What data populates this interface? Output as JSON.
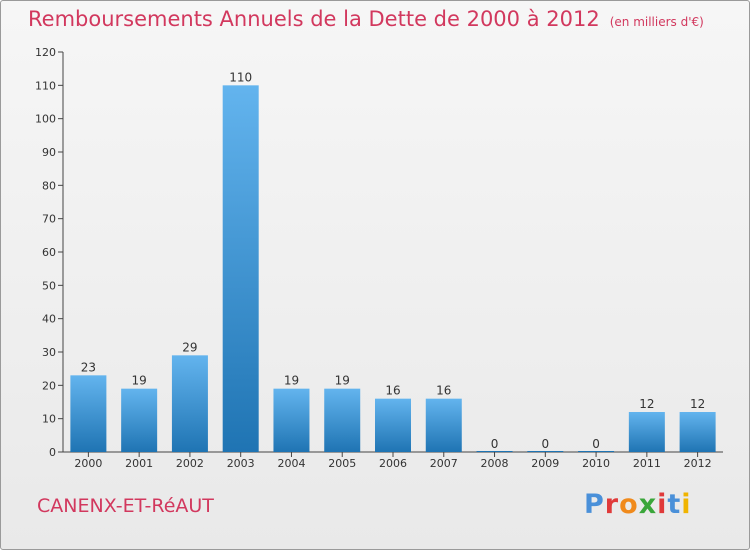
{
  "title": "Remboursements Annuels de la Dette de 2000 à 2012",
  "subtitle": "(en milliers d'€)",
  "town": "CANENX-ET-RéAUT",
  "logo": {
    "letters": [
      "P",
      "r",
      "o",
      "x",
      "i",
      "t",
      "i"
    ],
    "colors": [
      "#4a90d9",
      "#e03a3a",
      "#f08a1c",
      "#3aa63a",
      "#e03a3a",
      "#4a90d9",
      "#f0b400"
    ]
  },
  "colors": {
    "title": "#d2385e",
    "bar_top": "#63b4ee",
    "bar_bottom": "#1f74b3",
    "axis": "#444444"
  },
  "chart_data": {
    "type": "bar",
    "categories": [
      "2000",
      "2001",
      "2002",
      "2003",
      "2004",
      "2005",
      "2006",
      "2007",
      "2008",
      "2009",
      "2010",
      "2011",
      "2012"
    ],
    "values": [
      23,
      19,
      29,
      110,
      19,
      19,
      16,
      16,
      0,
      0,
      0,
      12,
      12
    ],
    "data_labels": [
      "23",
      "19",
      "29",
      "110",
      "19",
      "19",
      "16",
      "16",
      "0",
      "0",
      "0",
      "12",
      "12"
    ],
    "title": "Remboursements Annuels de la Dette de 2000 à 2012",
    "xlabel": "",
    "ylabel": "",
    "ylim": [
      0,
      120
    ],
    "yticks": [
      0,
      10,
      20,
      30,
      40,
      50,
      60,
      70,
      80,
      90,
      100,
      110,
      120
    ],
    "grid": false,
    "legend": "none"
  }
}
